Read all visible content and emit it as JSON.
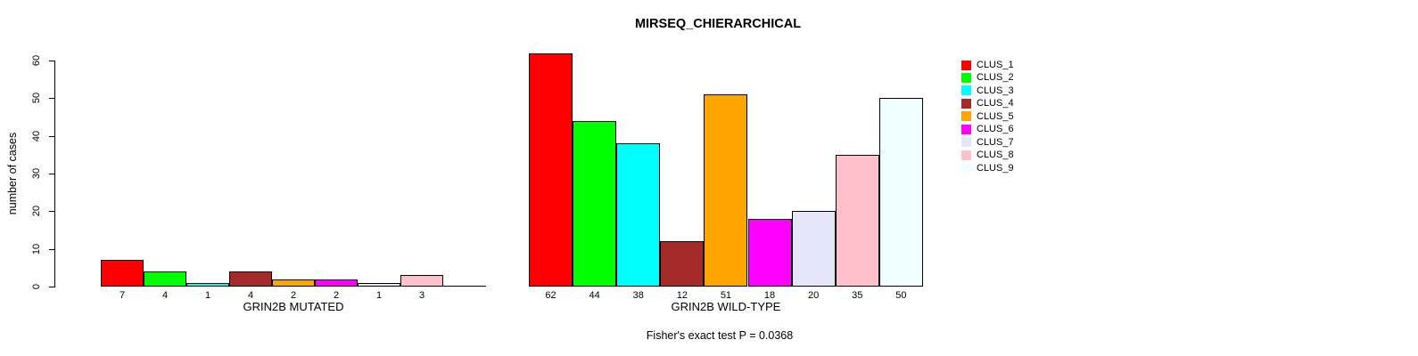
{
  "chart_data": {
    "type": "bar",
    "title": "MIRSEQ_CHIERARCHICAL",
    "ylabel": "number of cases",
    "ylim": [
      0,
      60
    ],
    "yticks": [
      0,
      10,
      20,
      30,
      40,
      50,
      60
    ],
    "grid": false,
    "legend_position": "right",
    "clusters": [
      {
        "label": "CLUS_1",
        "color": "#FF0000"
      },
      {
        "label": "CLUS_2",
        "color": "#00FF00"
      },
      {
        "label": "CLUS_3",
        "color": "#00FFFF"
      },
      {
        "label": "CLUS_4",
        "color": "#A52A2A"
      },
      {
        "label": "CLUS_5",
        "color": "#FFA500"
      },
      {
        "label": "CLUS_6",
        "color": "#FF00FF"
      },
      {
        "label": "CLUS_7",
        "color": "#E6E6FA"
      },
      {
        "label": "CLUS_8",
        "color": "#FFC0CB"
      },
      {
        "label": "CLUS_9",
        "color": "#F0FFFF"
      }
    ],
    "panels": [
      {
        "xlabel": "GRIN2B MUTATED",
        "values": [
          7,
          4,
          1,
          4,
          2,
          2,
          1,
          3,
          0
        ],
        "bar_labels": [
          "7",
          "4",
          "1",
          "4",
          "2",
          "2",
          "1",
          "3",
          ""
        ]
      },
      {
        "xlabel": "GRIN2B WILD-TYPE",
        "values": [
          62,
          44,
          38,
          12,
          51,
          18,
          20,
          35,
          50
        ],
        "bar_labels": [
          "62",
          "44",
          "38",
          "12",
          "51",
          "18",
          "20",
          "35",
          "50"
        ]
      }
    ],
    "annotation": "Fisher's exact test P = 0.0368"
  }
}
